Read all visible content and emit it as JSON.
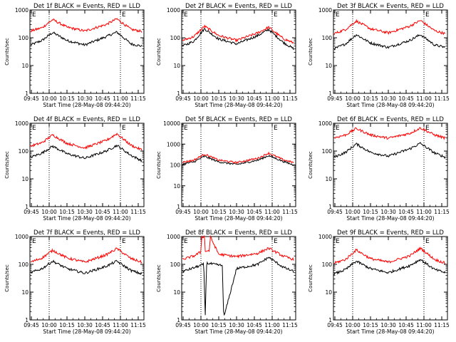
{
  "chart_data": [
    {
      "type": "line",
      "title": "Det 1f BLACK = Events, RED = LLD",
      "xlabel": "Start Time (28-May-08 09:44:20)",
      "ylabel": "Counts/sec",
      "yscale": "log",
      "ylim": [
        1,
        1000
      ],
      "xlim": [
        9.73,
        11.33
      ],
      "y_ticks": [
        "1",
        "10",
        "100",
        "1000"
      ],
      "x_ticks": [
        {
          "t": 9.75,
          "label": "09:45"
        },
        {
          "t": 10.0,
          "label": "10:00"
        },
        {
          "t": 10.25,
          "label": "10:15"
        },
        {
          "t": 10.5,
          "label": "10:30"
        },
        {
          "t": 10.75,
          "label": "10:45"
        },
        {
          "t": 11.0,
          "label": "11:00"
        },
        {
          "t": 11.25,
          "label": "11:15"
        }
      ],
      "markers": [
        {
          "t": 9.76,
          "label": "E"
        },
        {
          "t": 11.02,
          "label": "E"
        }
      ],
      "vlines": [
        10.0,
        11.0
      ],
      "series": [
        {
          "name": "Events",
          "color": "#000000",
          "t": [
            9.74,
            9.9,
            10.05,
            10.25,
            10.5,
            10.8,
            10.95,
            11.15,
            11.3
          ],
          "values": [
            55,
            80,
            155,
            80,
            55,
            110,
            160,
            60,
            50
          ]
        },
        {
          "name": "LLD",
          "color": "#ff0000",
          "t": [
            9.74,
            9.9,
            10.05,
            10.25,
            10.5,
            10.8,
            10.95,
            11.15,
            11.3
          ],
          "values": [
            175,
            230,
            450,
            240,
            175,
            300,
            480,
            200,
            170
          ]
        }
      ]
    },
    {
      "type": "line",
      "title": "Det 2f BLACK = Events, RED = LLD",
      "xlabel": "Start Time (28-May-08 09:44:20)",
      "ylabel": "Counts/sec",
      "yscale": "log",
      "ylim": [
        1,
        1000
      ],
      "xlim": [
        9.73,
        11.33
      ],
      "y_ticks": [
        "1",
        "10",
        "100",
        "1000"
      ],
      "x_ticks": [
        {
          "t": 9.75,
          "label": "09:45"
        },
        {
          "t": 10.0,
          "label": "10:00"
        },
        {
          "t": 10.25,
          "label": "10:15"
        },
        {
          "t": 10.5,
          "label": "10:30"
        },
        {
          "t": 10.75,
          "label": "10:45"
        },
        {
          "t": 11.0,
          "label": "11:00"
        },
        {
          "t": 11.25,
          "label": "11:15"
        }
      ],
      "markers": [
        {
          "t": 9.76,
          "label": "E"
        },
        {
          "t": 11.02,
          "label": "E"
        }
      ],
      "vlines": [
        10.0,
        11.0
      ],
      "series": [
        {
          "name": "Events",
          "color": "#000000",
          "t": [
            9.74,
            9.9,
            10.05,
            10.25,
            10.5,
            10.8,
            10.95,
            11.15,
            11.3
          ],
          "values": [
            50,
            75,
            210,
            90,
            60,
            120,
            200,
            70,
            40
          ]
        },
        {
          "name": "LLD",
          "color": "#ff0000",
          "t": [
            9.74,
            9.9,
            10.05,
            10.25,
            10.5,
            10.8,
            10.95,
            11.15,
            11.3
          ],
          "values": [
            80,
            110,
            260,
            120,
            80,
            150,
            240,
            95,
            65
          ]
        }
      ]
    },
    {
      "type": "line",
      "title": "Det 3f BLACK = Events, RED = LLD",
      "xlabel": "Start Time (28-May-08 09:44:20)",
      "ylabel": "Counts/sec",
      "yscale": "log",
      "ylim": [
        1,
        1000
      ],
      "xlim": [
        9.73,
        11.33
      ],
      "y_ticks": [
        "1",
        "10",
        "100",
        "1000"
      ],
      "x_ticks": [
        {
          "t": 9.75,
          "label": "09:45"
        },
        {
          "t": 10.0,
          "label": "10:00"
        },
        {
          "t": 10.25,
          "label": "10:15"
        },
        {
          "t": 10.5,
          "label": "10:30"
        },
        {
          "t": 10.75,
          "label": "10:45"
        },
        {
          "t": 11.0,
          "label": "11:00"
        },
        {
          "t": 11.25,
          "label": "11:15"
        }
      ],
      "markers": [
        {
          "t": 9.76,
          "label": "E"
        },
        {
          "t": 11.02,
          "label": "E"
        }
      ],
      "vlines": [
        10.0,
        11.0
      ],
      "series": [
        {
          "name": "Events",
          "color": "#000000",
          "t": [
            9.74,
            9.9,
            10.05,
            10.25,
            10.5,
            10.8,
            10.95,
            11.15,
            11.3
          ],
          "values": [
            40,
            60,
            130,
            65,
            45,
            80,
            130,
            55,
            45
          ]
        },
        {
          "name": "LLD",
          "color": "#ff0000",
          "t": [
            9.74,
            9.9,
            10.05,
            10.25,
            10.5,
            10.8,
            10.95,
            11.15,
            11.3
          ],
          "values": [
            140,
            200,
            400,
            210,
            150,
            260,
            420,
            180,
            140
          ]
        }
      ]
    },
    {
      "type": "line",
      "title": "Det 4f BLACK = Events, RED = LLD",
      "xlabel": "Start Time (28-May-08 09:44:20)",
      "ylabel": "Counts/sec",
      "yscale": "log",
      "ylim": [
        1,
        1000
      ],
      "xlim": [
        9.73,
        11.33
      ],
      "y_ticks": [
        "1",
        "10",
        "100",
        "1000"
      ],
      "x_ticks": [
        {
          "t": 9.75,
          "label": "09:45"
        },
        {
          "t": 10.0,
          "label": "10:00"
        },
        {
          "t": 10.25,
          "label": "10:15"
        },
        {
          "t": 10.5,
          "label": "10:30"
        },
        {
          "t": 10.75,
          "label": "10:45"
        },
        {
          "t": 11.0,
          "label": "11:00"
        },
        {
          "t": 11.25,
          "label": "11:15"
        }
      ],
      "markers": [
        {
          "t": 9.76,
          "label": "E"
        },
        {
          "t": 11.02,
          "label": "E"
        }
      ],
      "vlines": [
        10.0,
        11.0
      ],
      "series": [
        {
          "name": "Events",
          "color": "#000000",
          "t": [
            9.74,
            9.9,
            10.05,
            10.25,
            10.5,
            10.8,
            10.95,
            11.15,
            11.3
          ],
          "values": [
            60,
            85,
            150,
            80,
            55,
            100,
            160,
            70,
            45
          ]
        },
        {
          "name": "LLD",
          "color": "#ff0000",
          "t": [
            9.74,
            9.9,
            10.05,
            10.25,
            10.5,
            10.8,
            10.95,
            11.15,
            11.3
          ],
          "values": [
            150,
            200,
            380,
            190,
            130,
            240,
            420,
            160,
            110
          ]
        }
      ]
    },
    {
      "type": "line",
      "title": "Det 5f BLACK = Events, RED = LLD",
      "xlabel": "Start Time (28-May-08 09:44:20)",
      "ylabel": "Counts/sec",
      "yscale": "log",
      "ylim": [
        1,
        10000
      ],
      "xlim": [
        9.73,
        11.33
      ],
      "y_ticks": [
        "1",
        "10",
        "100",
        "1000",
        "10000"
      ],
      "x_ticks": [
        {
          "t": 9.75,
          "label": "09:45"
        },
        {
          "t": 10.0,
          "label": "10:00"
        },
        {
          "t": 10.25,
          "label": "10:15"
        },
        {
          "t": 10.5,
          "label": "10:30"
        },
        {
          "t": 10.75,
          "label": "10:45"
        },
        {
          "t": 11.0,
          "label": "11:00"
        },
        {
          "t": 11.25,
          "label": "11:15"
        }
      ],
      "markers": [
        {
          "t": 9.76,
          "label": "E"
        },
        {
          "t": 11.02,
          "label": "E"
        }
      ],
      "vlines": [
        10.0,
        11.0
      ],
      "series": [
        {
          "name": "Events",
          "color": "#000000",
          "t": [
            9.74,
            9.9,
            10.05,
            10.25,
            10.5,
            10.8,
            10.95,
            11.15,
            11.3
          ],
          "values": [
            110,
            140,
            260,
            140,
            105,
            170,
            280,
            150,
            100
          ]
        },
        {
          "name": "LLD",
          "color": "#ff0000",
          "t": [
            9.74,
            9.9,
            10.05,
            10.25,
            10.5,
            10.8,
            10.95,
            11.15,
            11.3
          ],
          "values": [
            135,
            170,
            330,
            170,
            130,
            210,
            370,
            180,
            130
          ]
        }
      ]
    },
    {
      "type": "line",
      "title": "Det 6f BLACK = Events, RED = LLD",
      "xlabel": "Start Time (28-May-08 09:44:20)",
      "ylabel": "Counts/sec",
      "yscale": "log",
      "ylim": [
        1,
        1000
      ],
      "xlim": [
        9.73,
        11.33
      ],
      "y_ticks": [
        "1",
        "10",
        "100",
        "1000"
      ],
      "x_ticks": [
        {
          "t": 9.75,
          "label": "09:45"
        },
        {
          "t": 10.0,
          "label": "10:00"
        },
        {
          "t": 10.25,
          "label": "10:15"
        },
        {
          "t": 10.5,
          "label": "10:30"
        },
        {
          "t": 10.75,
          "label": "10:45"
        },
        {
          "t": 11.0,
          "label": "11:00"
        },
        {
          "t": 11.25,
          "label": "11:15"
        }
      ],
      "markers": [
        {
          "t": 9.76,
          "label": "E"
        },
        {
          "t": 11.02,
          "label": "E"
        }
      ],
      "vlines": [
        10.0,
        11.0
      ],
      "series": [
        {
          "name": "Events",
          "color": "#000000",
          "t": [
            9.74,
            9.9,
            10.05,
            10.25,
            10.5,
            10.8,
            10.95,
            11.15,
            11.3
          ],
          "values": [
            60,
            90,
            180,
            90,
            65,
            120,
            190,
            85,
            60
          ]
        },
        {
          "name": "LLD",
          "color": "#ff0000",
          "t": [
            9.74,
            9.9,
            10.05,
            10.25,
            10.5,
            10.8,
            10.95,
            11.15,
            11.3
          ],
          "values": [
            300,
            380,
            650,
            380,
            290,
            430,
            680,
            380,
            290
          ]
        }
      ]
    },
    {
      "type": "line",
      "title": "Det 7f BLACK = Events, RED = LLD",
      "xlabel": "Start Time (28-May-08 09:44:20)",
      "ylabel": "Counts/sec",
      "yscale": "log",
      "ylim": [
        1,
        1000
      ],
      "xlim": [
        9.73,
        11.33
      ],
      "y_ticks": [
        "1",
        "10",
        "100",
        "1000"
      ],
      "x_ticks": [
        {
          "t": 9.75,
          "label": "09:45"
        },
        {
          "t": 10.0,
          "label": "10:00"
        },
        {
          "t": 10.25,
          "label": "10:15"
        },
        {
          "t": 10.5,
          "label": "10:30"
        },
        {
          "t": 10.75,
          "label": "10:45"
        },
        {
          "t": 11.0,
          "label": "11:00"
        },
        {
          "t": 11.25,
          "label": "11:15"
        }
      ],
      "markers": [
        {
          "t": 9.76,
          "label": "E"
        },
        {
          "t": 11.02,
          "label": "E"
        }
      ],
      "vlines": [
        10.0,
        11.0
      ],
      "series": [
        {
          "name": "Events",
          "color": "#000000",
          "t": [
            9.74,
            9.9,
            10.05,
            10.25,
            10.5,
            10.8,
            10.95,
            11.15,
            11.3
          ],
          "values": [
            50,
            70,
            130,
            70,
            48,
            85,
            130,
            60,
            45
          ]
        },
        {
          "name": "LLD",
          "color": "#ff0000",
          "t": [
            9.74,
            9.9,
            10.05,
            10.25,
            10.5,
            10.8,
            10.95,
            11.15,
            11.3
          ],
          "values": [
            120,
            170,
            320,
            170,
            120,
            220,
            370,
            160,
            120
          ]
        }
      ]
    },
    {
      "type": "line",
      "title": "Det 8f BLACK = Events, RED = LLD",
      "xlabel": "Start Time (28-May-08 09:44:20)",
      "ylabel": "Counts/sec",
      "yscale": "log",
      "ylim": [
        1,
        1000
      ],
      "xlim": [
        9.73,
        11.33
      ],
      "y_ticks": [
        "1",
        "10",
        "100",
        "1000"
      ],
      "x_ticks": [
        {
          "t": 9.75,
          "label": "09:45"
        },
        {
          "t": 10.0,
          "label": "10:00"
        },
        {
          "t": 10.25,
          "label": "10:15"
        },
        {
          "t": 10.5,
          "label": "10:30"
        },
        {
          "t": 10.75,
          "label": "10:45"
        },
        {
          "t": 11.0,
          "label": "11:00"
        },
        {
          "t": 11.25,
          "label": "11:15"
        }
      ],
      "markers": [
        {
          "t": 9.76,
          "label": "E"
        },
        {
          "t": 11.02,
          "label": "E"
        }
      ],
      "vlines": [
        10.0,
        11.0
      ],
      "series": [
        {
          "name": "Events",
          "color": "#000000",
          "t": [
            9.74,
            9.9,
            10.04,
            10.06,
            10.08,
            10.3,
            10.32,
            10.5,
            10.8,
            10.95,
            11.15,
            11.3
          ],
          "values": [
            55,
            75,
            100,
            1.2,
            110,
            90,
            1.2,
            70,
            100,
            180,
            80,
            55
          ]
        },
        {
          "name": "LLD",
          "color": "#ff0000",
          "t": [
            9.74,
            9.9,
            10.0,
            10.01,
            10.05,
            10.06,
            10.12,
            10.13,
            10.25,
            10.5,
            10.8,
            10.95,
            11.15,
            11.3
          ],
          "values": [
            150,
            200,
            280,
            1000,
            1000,
            300,
            310,
            1000,
            230,
            190,
            250,
            380,
            200,
            150
          ]
        }
      ]
    },
    {
      "type": "line",
      "title": "Det 9f BLACK = Events, RED = LLD",
      "xlabel": "Start Time (28-May-08 09:44:20)",
      "ylabel": "Counts/sec",
      "yscale": "log",
      "ylim": [
        1,
        1000
      ],
      "xlim": [
        9.73,
        11.33
      ],
      "y_ticks": [
        "1",
        "10",
        "100",
        "1000"
      ],
      "x_ticks": [
        {
          "t": 9.75,
          "label": "09:45"
        },
        {
          "t": 10.0,
          "label": "10:00"
        },
        {
          "t": 10.25,
          "label": "10:15"
        },
        {
          "t": 10.5,
          "label": "10:30"
        },
        {
          "t": 10.75,
          "label": "10:45"
        },
        {
          "t": 11.0,
          "label": "11:00"
        },
        {
          "t": 11.25,
          "label": "11:15"
        }
      ],
      "markers": [
        {
          "t": 9.76,
          "label": "E"
        },
        {
          "t": 11.02,
          "label": "E"
        }
      ],
      "vlines": [
        10.0,
        11.0
      ],
      "series": [
        {
          "name": "Events",
          "color": "#000000",
          "t": [
            9.74,
            9.9,
            10.05,
            10.25,
            10.5,
            10.8,
            10.95,
            11.15,
            11.3
          ],
          "values": [
            45,
            65,
            130,
            70,
            50,
            90,
            150,
            65,
            50
          ]
        },
        {
          "name": "LLD",
          "color": "#ff0000",
          "t": [
            9.74,
            9.9,
            10.05,
            10.25,
            10.5,
            10.8,
            10.95,
            11.15,
            11.3
          ],
          "values": [
            110,
            150,
            330,
            160,
            120,
            200,
            380,
            150,
            110
          ]
        }
      ]
    }
  ]
}
